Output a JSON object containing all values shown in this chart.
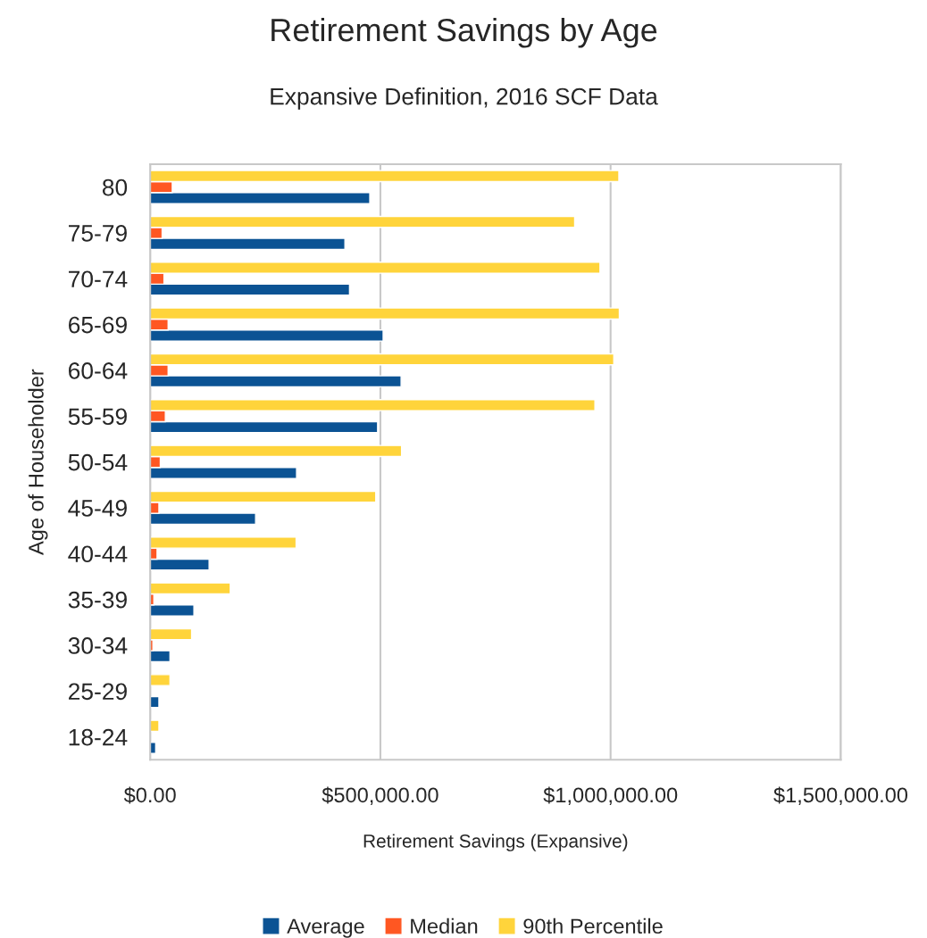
{
  "chart_data": {
    "type": "bar",
    "orientation": "horizontal",
    "title": "Retirement Savings by Age",
    "subtitle": "Expansive Definition, 2016 SCF Data",
    "xlabel": "Retirement Savings (Expansive)",
    "ylabel": "Age of Householder",
    "categories": [
      "80",
      "75-79",
      "70-74",
      "65-69",
      "60-64",
      "55-59",
      "50-54",
      "45-49",
      "40-44",
      "35-39",
      "30-34",
      "25-29",
      "18-24"
    ],
    "series": [
      {
        "name": "Average",
        "color": "#0b5394",
        "values": [
          477000,
          423000,
          433000,
          506000,
          545000,
          494000,
          318000,
          229000,
          128000,
          95000,
          43000,
          19000,
          12000
        ]
      },
      {
        "name": "Median",
        "color": "#ff5722",
        "values": [
          48000,
          26000,
          30000,
          39000,
          39000,
          33000,
          22000,
          19000,
          15000,
          8000,
          6000,
          null,
          null
        ]
      },
      {
        "name": "90th Percentile",
        "color": "#ffd43b",
        "values": [
          1018000,
          922000,
          977000,
          1019000,
          1007000,
          966000,
          546000,
          490000,
          317000,
          174000,
          90000,
          43000,
          19000
        ]
      }
    ],
    "xlim": [
      0,
      1500000
    ],
    "xticks": [
      {
        "value": 0,
        "label": "$0.00"
      },
      {
        "value": 500000,
        "label": "$500,000.00"
      },
      {
        "value": 1000000,
        "label": "$1,000,000.00"
      },
      {
        "value": 1500000,
        "label": "$1,500,000.00"
      }
    ],
    "grid": "x",
    "legend": "bottom"
  }
}
